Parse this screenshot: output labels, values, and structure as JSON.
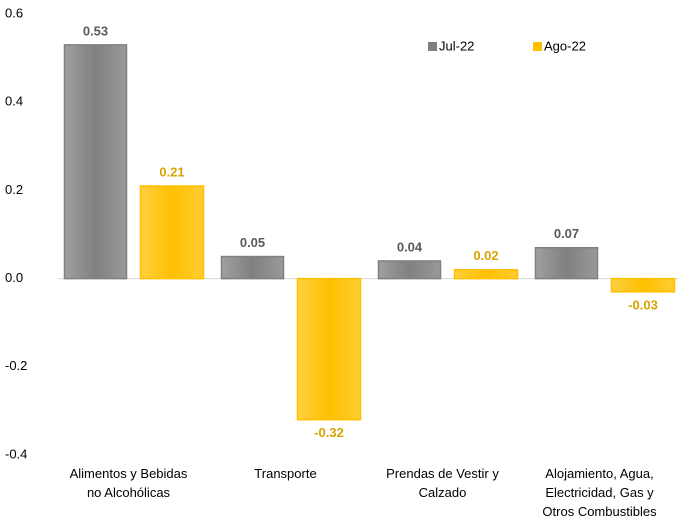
{
  "chart_data": {
    "type": "bar",
    "categories": [
      "Alimentos y Bebidas\nno Alcohólicas",
      "Transporte",
      "Prendas de Vestir y\nCalzado",
      "Alojamiento, Agua,\nElectricidad, Gas y\nOtros Combustibles"
    ],
    "series": [
      {
        "name": "Jul-22",
        "color": "#808080",
        "label_color": "#595959",
        "values": [
          0.53,
          0.05,
          0.04,
          0.07
        ]
      },
      {
        "name": "Ago-22",
        "color": "#ffc000",
        "label_color": "#d9a300",
        "values": [
          0.21,
          -0.32,
          0.02,
          -0.03
        ]
      }
    ],
    "ylim": [
      -0.4,
      0.6
    ],
    "yticks": [
      -0.4,
      -0.2,
      {
        "value": 0,
        "label": "0.0"
      },
      0.2,
      0.4,
      0.6
    ],
    "legend": "top-right"
  }
}
